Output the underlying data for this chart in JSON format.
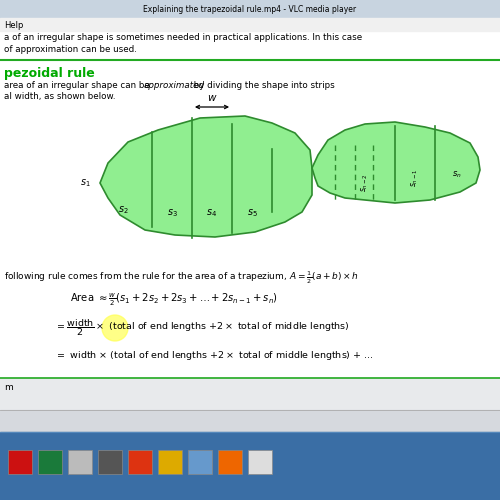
{
  "title": "Explaining the trapezoidal rule.mp4 - VLC media player",
  "menu_text": "Help",
  "top_text_line1": "a of an irregular shape is sometimes needed in practical applications. In this case",
  "top_text_line2": "of approximation can be used.",
  "section_title": "pezoidal rule",
  "body_text_line1": "area of an irregular shape can be ",
  "body_text_italic": "approximated",
  "body_text_line1b": " by dividing the shape into strips",
  "body_text_line2": "al width, as shown below.",
  "formula_intro": "following rule comes from the rule for the area of a trapezium, ",
  "bg_color": "#f0f0f0",
  "title_bar_color": "#c8d4e0",
  "content_bg": "#ffffff",
  "section_color": "#00aa00",
  "shape_fill": "#90ee90",
  "shape_stroke": "#2e8b2e",
  "text_color": "#000000",
  "green_line_color": "#22aa22",
  "taskbar_bg": "#3a6ea5",
  "taskbar_strip_bg": "#c8cdd4",
  "yellow_circle": "#ffff55"
}
